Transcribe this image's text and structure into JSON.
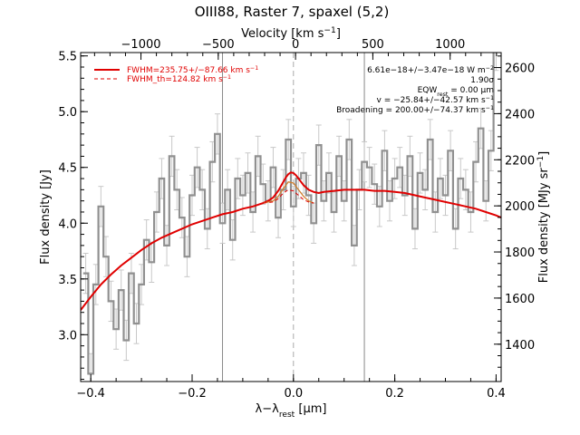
{
  "chart_data": {
    "type": "line",
    "title": "OIII88, Raster 7, spaxel (5,2)",
    "xlabel": "λ−λ",
    "xlabel_sub": "rest",
    "xlabel_unit": " [μm]",
    "ylabel": "Flux density [Jy]",
    "ylabel_right": "Flux density [MJy sr",
    "ylabel_right_sup": "−1",
    "ylabel_right_end": "]",
    "top_xlabel": "Velocity [km s",
    "top_xlabel_sup": "−1",
    "top_xlabel_end": "]",
    "xlim": [
      -0.42,
      0.41
    ],
    "ylim": [
      2.58,
      5.53
    ],
    "y2lim": [
      1238,
      2665
    ],
    "top_lim": [
      -1390,
      1330
    ],
    "x_ticks": [
      -0.4,
      -0.2,
      0.0,
      0.2,
      0.4
    ],
    "x_tick_labels": [
      "−0.4",
      "−0.2",
      "0.0",
      "0.2",
      "0.4"
    ],
    "y_ticks": [
      3.0,
      3.5,
      4.0,
      4.5,
      5.0,
      5.5
    ],
    "y_tick_labels": [
      "3.0",
      "3.5",
      "4.0",
      "4.5",
      "5.0",
      "5.5"
    ],
    "y2_ticks": [
      1400,
      1600,
      1800,
      2000,
      2200,
      2400,
      2600
    ],
    "y2_tick_labels": [
      "1400",
      "1600",
      "1800",
      "2000",
      "2200",
      "2400",
      "2600"
    ],
    "top_ticks": [
      -1000,
      -500,
      0,
      500,
      1000
    ],
    "top_tick_labels": [
      "−1000",
      "−500",
      "0",
      "500",
      "1000"
    ],
    "vlines_dashed": [
      0.0
    ],
    "vlines_solid": [
      -0.14,
      0.14
    ],
    "series": [
      {
        "name": "",
        "style": "histogram",
        "color": "#909090",
        "x": [
          -0.41,
          -0.4,
          -0.39,
          -0.38,
          -0.37,
          -0.36,
          -0.35,
          -0.34,
          -0.33,
          -0.32,
          -0.31,
          -0.3,
          -0.29,
          -0.28,
          -0.27,
          -0.26,
          -0.25,
          -0.24,
          -0.23,
          -0.22,
          -0.21,
          -0.2,
          -0.19,
          -0.18,
          -0.17,
          -0.16,
          -0.15,
          -0.14,
          -0.13,
          -0.12,
          -0.11,
          -0.1,
          -0.09,
          -0.08,
          -0.07,
          -0.06,
          -0.05,
          -0.04,
          -0.03,
          -0.02,
          -0.01,
          0.0,
          0.01,
          0.02,
          0.03,
          0.04,
          0.05,
          0.06,
          0.07,
          0.08,
          0.09,
          0.1,
          0.11,
          0.12,
          0.13,
          0.14,
          0.15,
          0.16,
          0.17,
          0.18,
          0.19,
          0.2,
          0.21,
          0.22,
          0.23,
          0.24,
          0.25,
          0.26,
          0.27,
          0.28,
          0.29,
          0.3,
          0.31,
          0.32,
          0.33,
          0.34,
          0.35,
          0.36,
          0.37,
          0.38,
          0.39,
          0.4
        ],
        "y": [
          3.55,
          2.65,
          3.45,
          4.15,
          3.7,
          3.3,
          3.05,
          3.4,
          2.95,
          3.55,
          3.1,
          3.45,
          3.85,
          3.65,
          4.1,
          4.4,
          3.8,
          4.6,
          4.3,
          4.05,
          3.7,
          4.25,
          4.5,
          4.3,
          3.95,
          4.55,
          4.8,
          4.0,
          4.3,
          3.85,
          4.4,
          4.25,
          4.45,
          4.1,
          4.6,
          4.35,
          4.2,
          4.5,
          4.05,
          4.3,
          4.75,
          4.15,
          4.4,
          4.45,
          4.25,
          4.0,
          4.7,
          4.2,
          4.45,
          4.1,
          4.6,
          4.2,
          4.75,
          3.8,
          4.3,
          4.55,
          4.5,
          4.35,
          4.15,
          4.65,
          4.2,
          4.4,
          4.5,
          4.25,
          4.6,
          3.95,
          4.45,
          4.3,
          4.75,
          4.1,
          4.4,
          4.25,
          4.65,
          3.95,
          4.4,
          4.3,
          4.1,
          4.55,
          4.85,
          4.2,
          4.65,
          5.55
        ],
        "err": 0.18
      },
      {
        "name": "FWHM=235.75+/−87.66 km s",
        "name_sup": "−1",
        "style": "line",
        "color": "#e00000",
        "x": [
          -0.42,
          -0.4,
          -0.38,
          -0.36,
          -0.34,
          -0.32,
          -0.3,
          -0.28,
          -0.26,
          -0.24,
          -0.22,
          -0.2,
          -0.18,
          -0.16,
          -0.14,
          -0.12,
          -0.1,
          -0.08,
          -0.06,
          -0.05,
          -0.04,
          -0.03,
          -0.02,
          -0.015,
          -0.01,
          -0.005,
          0.0,
          0.005,
          0.01,
          0.015,
          0.02,
          0.03,
          0.04,
          0.05,
          0.06,
          0.08,
          0.1,
          0.12,
          0.14,
          0.16,
          0.18,
          0.2,
          0.22,
          0.24,
          0.26,
          0.28,
          0.3,
          0.32,
          0.34,
          0.36,
          0.38,
          0.4,
          0.41
        ],
        "y": [
          3.22,
          3.34,
          3.45,
          3.54,
          3.62,
          3.69,
          3.76,
          3.82,
          3.87,
          3.91,
          3.95,
          3.99,
          4.02,
          4.05,
          4.08,
          4.1,
          4.13,
          4.15,
          4.18,
          4.2,
          4.23,
          4.29,
          4.37,
          4.41,
          4.44,
          4.455,
          4.45,
          4.43,
          4.4,
          4.37,
          4.34,
          4.3,
          4.28,
          4.27,
          4.28,
          4.29,
          4.3,
          4.3,
          4.3,
          4.29,
          4.29,
          4.28,
          4.27,
          4.25,
          4.23,
          4.21,
          4.19,
          4.17,
          4.15,
          4.13,
          4.1,
          4.07,
          4.05
        ]
      },
      {
        "name": "",
        "style": "line",
        "color": "#d08030",
        "x": [
          -0.06,
          -0.04,
          -0.03,
          -0.02,
          -0.01,
          0.0,
          0.01,
          0.02,
          0.03,
          0.04
        ],
        "y": [
          4.18,
          4.2,
          4.24,
          4.31,
          4.37,
          4.36,
          4.3,
          4.24,
          4.2,
          4.18
        ]
      },
      {
        "name": "FWHM_th=124.82 km s",
        "name_sup": "−1",
        "style": "dashed",
        "color": "#e00000",
        "x": [
          -0.06,
          -0.04,
          -0.03,
          -0.02,
          -0.01,
          0.0,
          0.01,
          0.02,
          0.03,
          0.04
        ],
        "y": [
          4.18,
          4.19,
          4.22,
          4.27,
          4.3,
          4.29,
          4.25,
          4.21,
          4.19,
          4.18
        ]
      }
    ],
    "annotations": [
      {
        "text": "6.61e−18+/−3.47e−18 W m",
        "sup": "−2"
      },
      {
        "text": "1.90σ"
      },
      {
        "text": "EQW",
        "sub": "rest",
        "text_end": " = 0.00 μm"
      },
      {
        "text": "v = −25.84+/−42.57 km s",
        "sup": "−1"
      },
      {
        "text": "Broadening = 200.00+/−74.37 km s",
        "sup": "−1"
      }
    ],
    "legend_position": "top-left"
  }
}
